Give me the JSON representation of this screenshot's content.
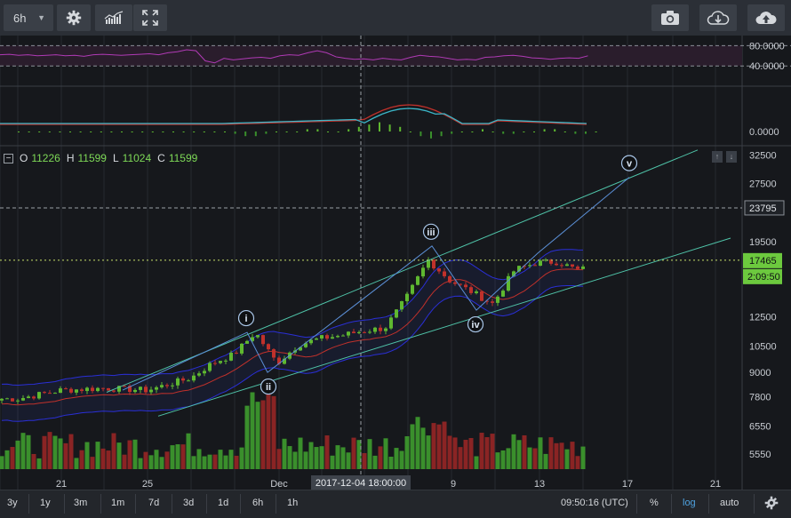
{
  "toolbar": {
    "interval": "6h",
    "icons": [
      "gear-icon",
      "indicators-icon",
      "fullscreen-icon",
      "camera-icon",
      "cloud-download-icon",
      "cloud-upload-icon"
    ]
  },
  "ohlc": {
    "o_label": "O",
    "o": "11226",
    "h_label": "H",
    "h": "11599",
    "l_label": "L",
    "l": "11024",
    "c_label": "C",
    "c": "11599",
    "minus": "−"
  },
  "panel_controls": {
    "up": "↑",
    "down": "↓"
  },
  "rsi": {
    "ticks": [
      "80.0000",
      "40.0000"
    ]
  },
  "macd": {
    "ticks": [
      "0.0000"
    ]
  },
  "price_axis": {
    "ticks": [
      "32500",
      "27500",
      "23795",
      "19500",
      "17465",
      "2:09:50",
      "12500",
      "10500",
      "9000",
      "7800",
      "6550",
      "5550"
    ]
  },
  "x_axis": {
    "ticks": [
      "21",
      "25",
      "Dec",
      "9",
      "13",
      "17",
      "21"
    ],
    "cursor_label": "2017-12-04 18:00:00"
  },
  "waves": [
    "i",
    "ii",
    "iii",
    "iv",
    "v"
  ],
  "bottom": {
    "ranges": [
      "3y",
      "1y",
      "3m",
      "1m",
      "7d",
      "3d",
      "1d",
      "6h",
      "1h"
    ],
    "clock": "09:50:16 (UTC)",
    "pct": "%",
    "log": "log",
    "auto": "auto"
  },
  "colors": {
    "up": "#5fb830",
    "down": "#c0312b",
    "volume_up": "#3a8f2c",
    "volume_down": "#8a2424",
    "bollinger": "#2a2fd6",
    "ma_red": "#c0312b",
    "rsi_line": "#b03ab5",
    "macd_signal": "#3bb6c8",
    "channel": "#4fc3a8",
    "wave_lines": "#5b8fd6",
    "last_price_label": "#6cc93e",
    "accent": "#4fa3e0"
  },
  "chart_data": {
    "type": "candlestick",
    "interval": "6h",
    "y_scale": "log",
    "ylim": [
      5000,
      34000
    ],
    "x_range": [
      "2017-11-18",
      "2017-12-22"
    ],
    "last_price": 17465,
    "marked_level": 23795,
    "cursor_time": "2017-12-04 18:00:00",
    "ohlc_display": {
      "open": 11226,
      "high": 11599,
      "low": 11024,
      "close": 11599
    },
    "x_ticks": [
      "21",
      "25",
      "Dec",
      "9",
      "13",
      "17",
      "21"
    ],
    "y_ticks": [
      32500,
      27500,
      19500,
      12500,
      10500,
      9000,
      7800,
      6550,
      5550
    ],
    "elliott_waves": [
      {
        "label": "i",
        "date": "2017-11-29",
        "price": 11400
      },
      {
        "label": "ii",
        "date": "2017-11-29",
        "price": 9000
      },
      {
        "label": "iii",
        "date": "2017-12-07",
        "price": 19000
      },
      {
        "label": "iv",
        "date": "2017-12-10",
        "price": 13000
      },
      {
        "label": "v",
        "date": "2017-12-17",
        "price": 28500
      }
    ],
    "series": [
      {
        "name": "close",
        "values": [
          {
            "date": "2017-11-18",
            "close": 7700
          },
          {
            "date": "2017-11-20",
            "close": 8100
          },
          {
            "date": "2017-11-22",
            "close": 8200
          },
          {
            "date": "2017-11-24",
            "close": 8100
          },
          {
            "date": "2017-11-26",
            "close": 8700
          },
          {
            "date": "2017-11-27",
            "close": 9500
          },
          {
            "date": "2017-11-28",
            "close": 10000
          },
          {
            "date": "2017-11-29",
            "close": 11400
          },
          {
            "date": "2017-11-30",
            "close": 9500
          },
          {
            "date": "2017-12-01",
            "close": 10600
          },
          {
            "date": "2017-12-02",
            "close": 11000
          },
          {
            "date": "2017-12-03",
            "close": 11200
          },
          {
            "date": "2017-12-04",
            "close": 11500
          },
          {
            "date": "2017-12-05",
            "close": 11700
          },
          {
            "date": "2017-12-06",
            "close": 14000
          },
          {
            "date": "2017-12-07",
            "close": 17500
          },
          {
            "date": "2017-12-08",
            "close": 15500
          },
          {
            "date": "2017-12-09",
            "close": 14500
          },
          {
            "date": "2017-12-10",
            "close": 13500
          },
          {
            "date": "2017-12-11",
            "close": 16500
          },
          {
            "date": "2017-12-12",
            "close": 17200
          },
          {
            "date": "2017-12-13",
            "close": 17300
          },
          {
            "date": "2017-12-14",
            "close": 16400
          },
          {
            "date": "2017-12-15",
            "close": 17465
          }
        ]
      }
    ]
  }
}
